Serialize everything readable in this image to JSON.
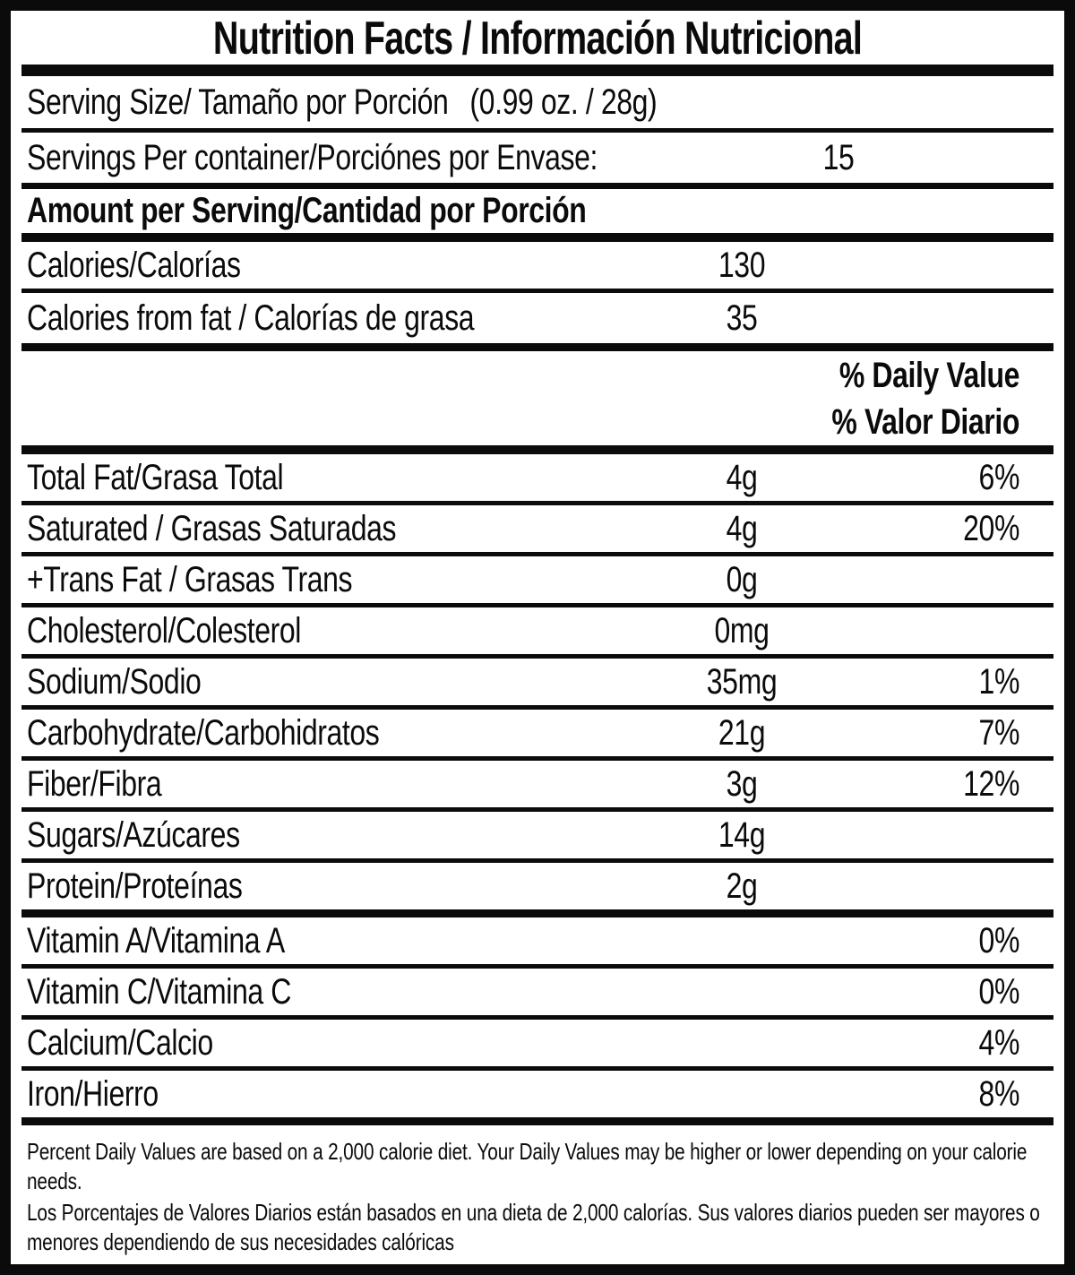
{
  "title": "Nutrition Facts / Información Nutricional",
  "serving_size": {
    "label": "Serving Size/ Tamaño por Porción",
    "value": "(0.99 oz. / 28g)"
  },
  "servings_per_container": {
    "label": "Servings Per container/Porciónes por Envase:",
    "value": "15"
  },
  "amount_header": "Amount per Serving/Cantidad por Porción",
  "calories": {
    "label": "Calories/Calorías",
    "amount": "130"
  },
  "calories_from_fat": {
    "label": "Calories from fat / Calorías de grasa",
    "amount": "35"
  },
  "daily_value_header": {
    "en": "% Daily Value",
    "es": "% Valor Diario"
  },
  "nutrients": [
    {
      "label": "Total Fat/Grasa Total",
      "amount": "4g",
      "daily_value": "6%"
    },
    {
      "label": "Saturated / Grasas Saturadas",
      "amount": "4g",
      "daily_value": "20%"
    },
    {
      "label": "+Trans Fat / Grasas Trans",
      "amount": "0g",
      "daily_value": ""
    },
    {
      "label": "Cholesterol/Colesterol",
      "amount": "0mg",
      "daily_value": ""
    },
    {
      "label": "Sodium/Sodio",
      "amount": "35mg",
      "daily_value": "1%"
    },
    {
      "label": "Carbohydrate/Carbohidratos",
      "amount": "21g",
      "daily_value": "7%"
    },
    {
      "label": "Fiber/Fibra",
      "amount": "3g",
      "daily_value": "12%"
    },
    {
      "label": "Sugars/Azúcares",
      "amount": "14g",
      "daily_value": ""
    },
    {
      "label": "Protein/Proteínas",
      "amount": "2g",
      "daily_value": ""
    }
  ],
  "vitamins": [
    {
      "label": "Vitamin A/Vitamina A",
      "daily_value": "0%"
    },
    {
      "label": "Vitamin C/Vitamina C",
      "daily_value": "0%"
    },
    {
      "label": "Calcium/Calcio",
      "daily_value": "4%"
    },
    {
      "label": "Iron/Hierro",
      "daily_value": "8%"
    }
  ],
  "footnotes": {
    "en": "Percent Daily Values are based on a 2,000 calorie diet. Your Daily Values may be higher or lower depending on your calorie needs.",
    "es": "Los Porcentajes de Valores Diarios están basados en una dieta de 2,000 calorías. Sus valores diarios pueden ser mayores o menores dependiendo de sus necesidades calóricas"
  },
  "colors": {
    "ink": "#0b0b0b",
    "background": "#ffffff"
  }
}
